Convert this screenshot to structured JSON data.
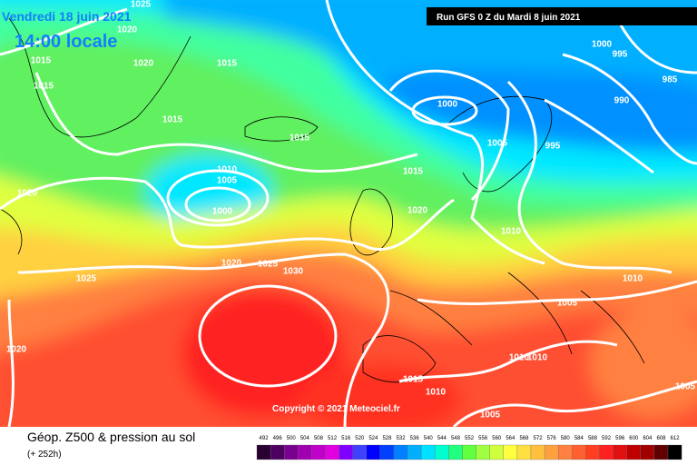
{
  "header": {
    "date": "Vendredi 18 juin 2021",
    "time": "14:00 locale",
    "run": "Run GFS 0 Z du Mardi 8 juin 2021"
  },
  "isobar_labels": [
    "1025",
    "1020",
    "1015",
    "1015",
    "1020",
    "1015",
    "1015",
    "1015",
    "1010",
    "1005",
    "1000",
    "1020",
    "1015",
    "1020",
    "1020",
    "1025",
    "1030",
    "1025",
    "1020",
    "1000",
    "1000",
    "995",
    "985",
    "990",
    "1005",
    "995",
    "1010",
    "1010",
    "1005",
    "1010",
    "1010",
    "1015",
    "1010",
    "1005",
    "1005"
  ],
  "copyright": "Copyright © 2021 Meteociel.fr",
  "footer": {
    "title": "Géop. Z500 & pression au sol",
    "lead": "(+ 252h)"
  },
  "scale": {
    "values": [
      492,
      496,
      500,
      504,
      508,
      512,
      516,
      520,
      524,
      528,
      532,
      536,
      540,
      544,
      548,
      552,
      556,
      560,
      564,
      568,
      572,
      576,
      580,
      584,
      588,
      592,
      596,
      600,
      604,
      608,
      612
    ],
    "colors": [
      "#2a0030",
      "#4b0060",
      "#7a0090",
      "#a000b0",
      "#c000c8",
      "#e000e0",
      "#8000ff",
      "#4040ff",
      "#0000ff",
      "#0040ff",
      "#0080ff",
      "#00b0ff",
      "#00e0ff",
      "#00ffd0",
      "#20ff80",
      "#60ff40",
      "#a0ff40",
      "#d0ff40",
      "#ffff40",
      "#ffe040",
      "#ffc040",
      "#ffa040",
      "#ff8040",
      "#ff6030",
      "#ff4020",
      "#ff2020",
      "#e01010",
      "#c00000",
      "#a00000",
      "#600000",
      "#000000"
    ]
  }
}
